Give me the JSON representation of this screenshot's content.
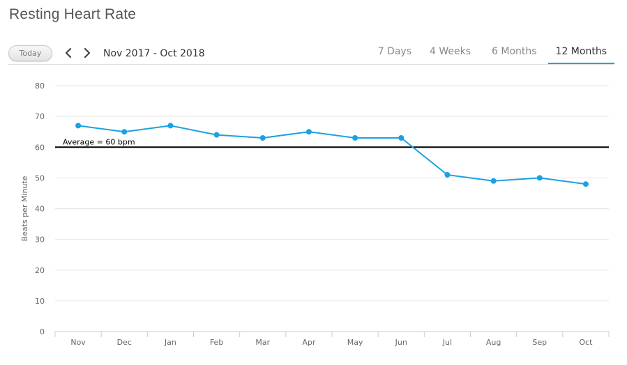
{
  "page": {
    "title": "Resting Heart Rate"
  },
  "controls": {
    "today_label": "Today",
    "range_label": "Nov 2017 - Oct 2018",
    "tabs": [
      "7 Days",
      "4 Weeks",
      "6 Months",
      "12 Months"
    ],
    "active_tab": "12 Months",
    "prev_icon": "chevron-left-icon",
    "next_icon": "chevron-right-icon"
  },
  "chart_data": {
    "type": "line",
    "title": "Resting Heart Rate",
    "xlabel": "",
    "ylabel": "Beats per Minute",
    "categories": [
      "Nov",
      "Dec",
      "Jan",
      "Feb",
      "Mar",
      "Apr",
      "May",
      "Jun",
      "Jul",
      "Aug",
      "Sep",
      "Oct"
    ],
    "series": [
      {
        "values": [
          67,
          65,
          67,
          64,
          63,
          65,
          63,
          63,
          51,
          49,
          50,
          48
        ],
        "color": "#1ba1e2"
      }
    ],
    "ylim": [
      0,
      80
    ],
    "yticks": [
      0,
      10,
      20,
      30,
      40,
      50,
      60,
      70,
      80
    ],
    "grid": true,
    "reference_line": {
      "value": 60,
      "label": "Average = 60 bpm",
      "color": "#000000"
    }
  }
}
